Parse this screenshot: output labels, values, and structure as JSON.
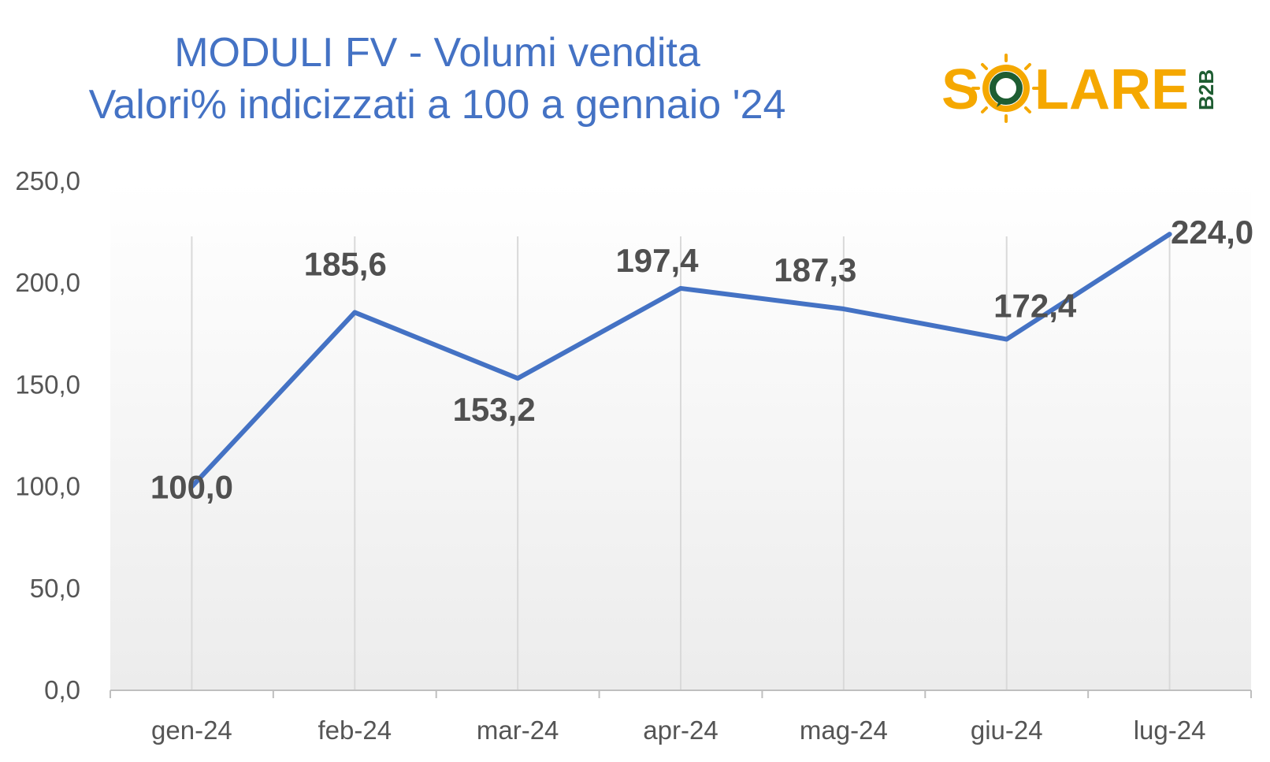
{
  "header": {
    "title_line1": "MODULI FV - Volumi vendita",
    "title_line2": "Valori% indicizzati a 100 a gennaio '24"
  },
  "logo": {
    "text_s": "S",
    "text_rest": "LARE",
    "text_b2b": "B2B",
    "accent_color": "#F5A800",
    "ring_color": "#1E5D32"
  },
  "chart_data": {
    "type": "line",
    "categories": [
      "gen-24",
      "feb-24",
      "mar-24",
      "apr-24",
      "mag-24",
      "giu-24",
      "lug-24"
    ],
    "series": [
      {
        "values": [
          100.0,
          185.6,
          153.2,
          197.4,
          187.3,
          172.4,
          224.0
        ]
      }
    ],
    "data_labels": [
      "100,0",
      "185,6",
      "153,2",
      "197,4",
      "187,3",
      "172,4",
      "224,0"
    ],
    "y_ticks": [
      "0,0",
      "50,0",
      "100,0",
      "150,0",
      "200,0",
      "250,0"
    ],
    "ylim": [
      0,
      250
    ],
    "grid": "vertical",
    "line_color": "#4472C4"
  }
}
